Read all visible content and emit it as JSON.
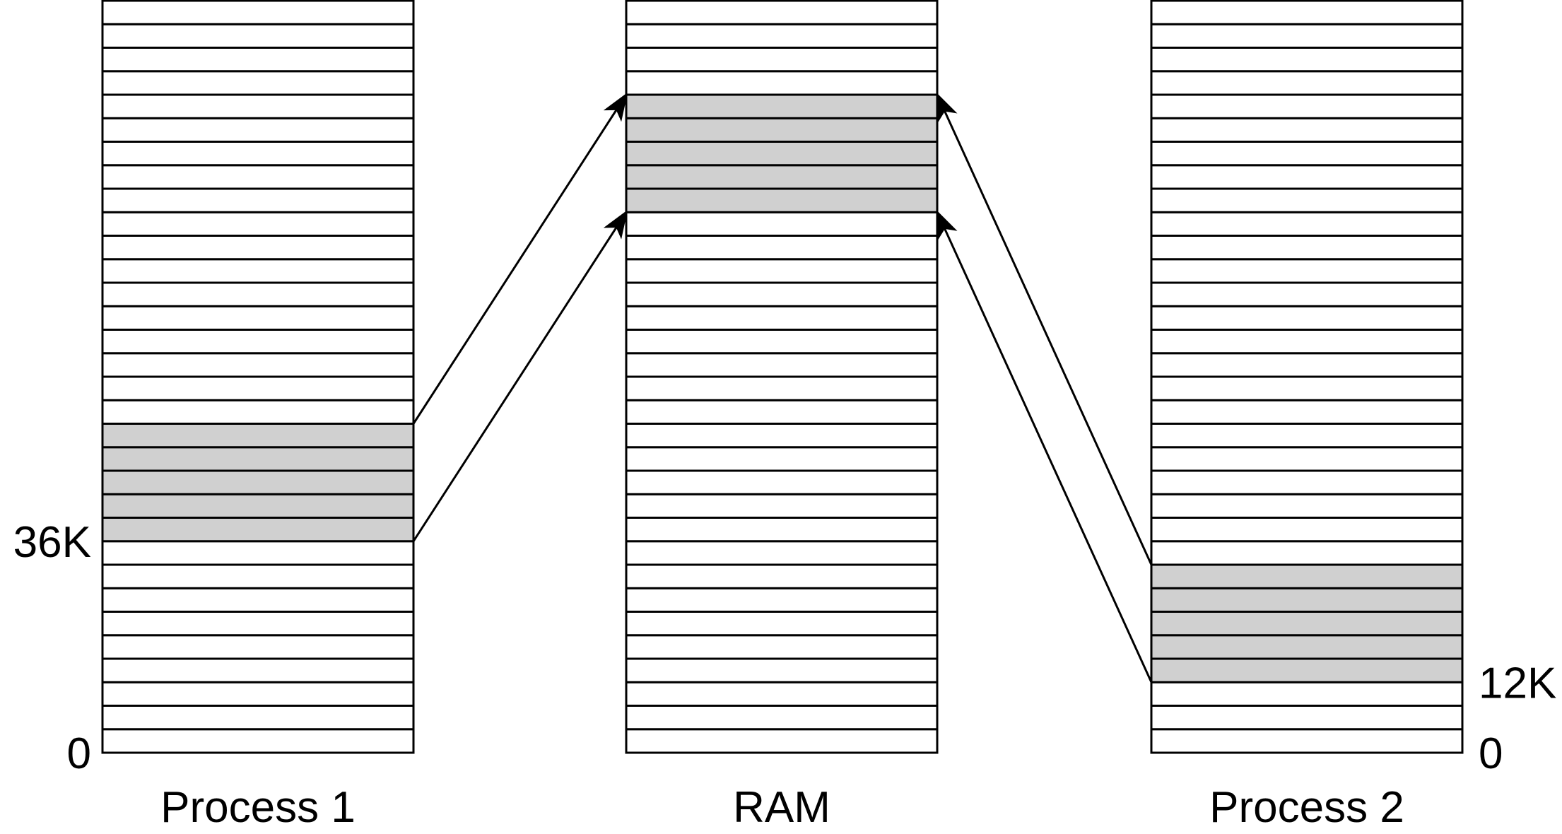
{
  "diagram": {
    "colors": {
      "stroke": "#000000",
      "shared": "#d0d0d0",
      "empty": "#ffffff"
    },
    "columns": [
      {
        "id": "process-1",
        "label": "Process 1",
        "slots": 32,
        "shaded_slots": [
          9,
          10,
          11,
          12,
          13
        ],
        "address_labels": [
          {
            "text": "36K",
            "slot_boundary": 9,
            "side": "left"
          },
          {
            "text": "0",
            "slot_boundary": 0,
            "side": "left"
          }
        ]
      },
      {
        "id": "ram",
        "label": "RAM",
        "slots": 32,
        "shaded_slots": [
          23,
          24,
          25,
          26,
          27
        ],
        "address_labels": []
      },
      {
        "id": "process-2",
        "label": "Process 2",
        "slots": 32,
        "shaded_slots": [
          3,
          4,
          5,
          6,
          7
        ],
        "address_labels": [
          {
            "text": "12K",
            "slot_boundary": 3,
            "side": "right"
          },
          {
            "text": "0",
            "slot_boundary": 0,
            "side": "right"
          }
        ]
      }
    ],
    "mappings": [
      {
        "from": "process-1",
        "from_boundary": 14,
        "to": "ram",
        "to_boundary": 28
      },
      {
        "from": "process-1",
        "from_boundary": 9,
        "to": "ram",
        "to_boundary": 23
      },
      {
        "from": "process-2",
        "from_boundary": 8,
        "to": "ram",
        "to_boundary": 28
      },
      {
        "from": "process-2",
        "from_boundary": 3,
        "to": "ram",
        "to_boundary": 23
      }
    ]
  }
}
